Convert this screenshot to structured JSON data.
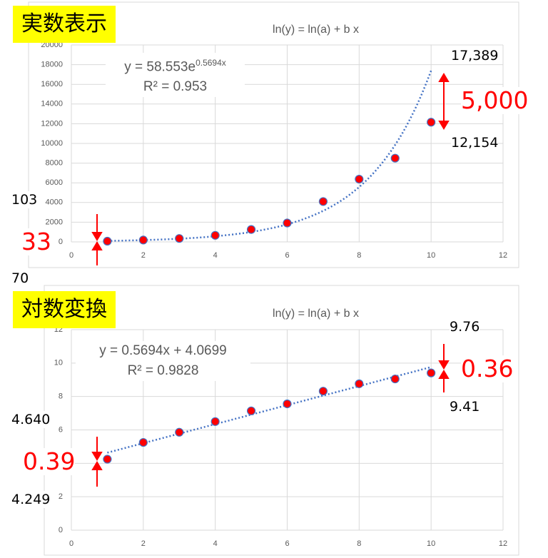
{
  "chart_data": [
    {
      "type": "scatter",
      "label": "実数表示",
      "title": "ln(y) = ln(a) + b x",
      "x": [
        1,
        2,
        3,
        4,
        5,
        6,
        7,
        8,
        9,
        10
      ],
      "values": [
        70,
        190,
        350,
        665,
        1260,
        1920,
        4100,
        6370,
        8500,
        12154
      ],
      "color": "#ff0000",
      "edge_color": "#4472c4",
      "xlim": [
        0,
        12
      ],
      "xticks": [
        0,
        2,
        4,
        6,
        8,
        10,
        12
      ],
      "ylim": [
        0,
        20000
      ],
      "yticks": [
        0,
        2000,
        4000,
        6000,
        8000,
        10000,
        12000,
        14000,
        16000,
        18000,
        20000
      ],
      "grid": true,
      "trendline": {
        "type": "exponential",
        "a": 58.553,
        "b": 0.5694,
        "color": "#4472c4",
        "equation": "y = 58.553e",
        "equation_exponent": "0.5694x",
        "r2_label": "R² = 0.953"
      },
      "annotations": [
        "17,389",
        "12,154",
        "5,000",
        "103",
        "70",
        "33"
      ]
    },
    {
      "type": "scatter",
      "label": "対数変換",
      "title": "ln(y) = ln(a) + b x",
      "x": [
        1,
        2,
        3,
        4,
        5,
        6,
        7,
        8,
        9,
        10
      ],
      "values": [
        4.249,
        5.25,
        5.86,
        6.5,
        7.14,
        7.56,
        8.32,
        8.76,
        9.05,
        9.41
      ],
      "color": "#ff0000",
      "edge_color": "#4472c4",
      "xlim": [
        0,
        12
      ],
      "xticks": [
        0,
        2,
        4,
        6,
        8,
        10,
        12
      ],
      "ylim": [
        0,
        12
      ],
      "yticks": [
        0,
        2,
        4,
        6,
        8,
        10,
        12
      ],
      "grid": true,
      "trendline": {
        "type": "linear",
        "slope": 0.5694,
        "intercept": 4.0699,
        "color": "#4472c4",
        "equation": "y = 0.5694x + 4.0699",
        "r2_label": "R² = 0.9828"
      },
      "annotations": [
        "9.76",
        "9.41",
        "0.36",
        "4.640",
        "4.249",
        "0.39"
      ]
    }
  ]
}
